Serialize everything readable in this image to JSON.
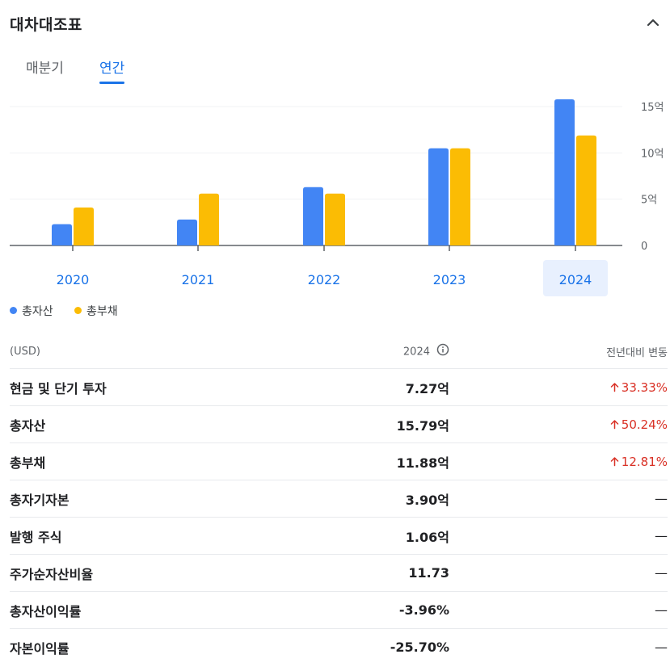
{
  "header": {
    "title": "대차대조표",
    "collapse_icon": "chevron-up-icon"
  },
  "tabs": [
    {
      "label": "매분기",
      "active": false
    },
    {
      "label": "연간",
      "active": true
    }
  ],
  "chart_data": {
    "type": "bar",
    "categories": [
      "2020",
      "2021",
      "2022",
      "2023",
      "2024"
    ],
    "selected_category": "2024",
    "series": [
      {
        "name": "총자산",
        "color": "#4285f4",
        "values": [
          2.3,
          2.8,
          6.3,
          10.5,
          15.79
        ]
      },
      {
        "name": "총부채",
        "color": "#fbbc04",
        "values": [
          4.1,
          5.6,
          5.6,
          10.5,
          11.88
        ]
      }
    ],
    "ylim": [
      0,
      15
    ],
    "yticks": [
      {
        "value": 0,
        "label": "0"
      },
      {
        "value": 5,
        "label": "5억"
      },
      {
        "value": 10,
        "label": "10억"
      },
      {
        "value": 15,
        "label": "15억"
      }
    ],
    "legend_position": "bottom-left",
    "grid": true
  },
  "legend": [
    {
      "label": "총자산",
      "color": "#4285f4"
    },
    {
      "label": "총부채",
      "color": "#fbbc04"
    }
  ],
  "table": {
    "headers": {
      "label": "(USD)",
      "year": "2024",
      "change": "전년대비 변동"
    },
    "info_icon": "info-icon",
    "rows": [
      {
        "label": "현금 및 단기 투자",
        "value": "7.27억",
        "change": "33.33%",
        "direction": "up"
      },
      {
        "label": "총자산",
        "value": "15.79억",
        "change": "50.24%",
        "direction": "up"
      },
      {
        "label": "총부채",
        "value": "11.88억",
        "change": "12.81%",
        "direction": "up"
      },
      {
        "label": "총자기자본",
        "value": "3.90억",
        "change": "—",
        "direction": "none"
      },
      {
        "label": "발행 주식",
        "value": "1.06억",
        "change": "—",
        "direction": "none"
      },
      {
        "label": "주가순자산비율",
        "value": "11.73",
        "change": "—",
        "direction": "none"
      },
      {
        "label": "총자산이익률",
        "value": "-3.96%",
        "change": "—",
        "direction": "none"
      },
      {
        "label": "자본이익률",
        "value": "-25.70%",
        "change": "—",
        "direction": "none"
      }
    ]
  }
}
